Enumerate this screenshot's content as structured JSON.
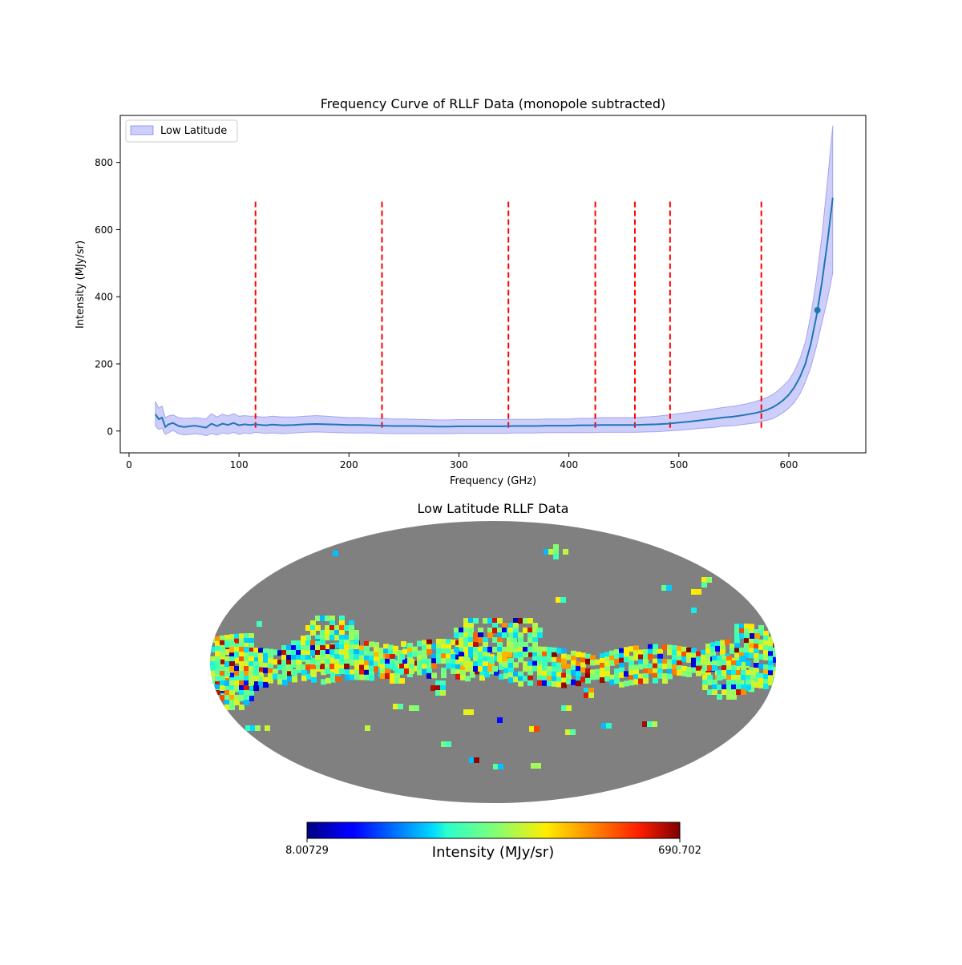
{
  "chart_data": [
    {
      "type": "line",
      "title": "Frequency Curve of RLLF Data (monopole subtracted)",
      "xlabel": "Frequency (GHz)",
      "ylabel": "Intensity (MJy/sr)",
      "xlim": [
        -8,
        670
      ],
      "ylim": [
        -65,
        940
      ],
      "xticks": [
        0,
        100,
        200,
        300,
        400,
        500,
        600
      ],
      "yticks": [
        0,
        200,
        400,
        600,
        800
      ],
      "legend": {
        "label": "Low Latitude",
        "placement": "top-left"
      },
      "series": [
        {
          "name": "Low Latitude",
          "x": [
            24,
            27,
            30,
            33,
            36,
            40,
            45,
            50,
            55,
            60,
            65,
            70,
            75,
            80,
            85,
            90,
            95,
            100,
            105,
            110,
            115,
            120,
            125,
            130,
            140,
            150,
            160,
            170,
            180,
            190,
            200,
            210,
            220,
            230,
            240,
            250,
            260,
            270,
            280,
            290,
            300,
            310,
            320,
            330,
            340,
            350,
            360,
            370,
            380,
            390,
            400,
            410,
            420,
            430,
            440,
            450,
            460,
            470,
            480,
            490,
            500,
            510,
            520,
            530,
            540,
            550,
            560,
            570,
            575,
            580,
            585,
            590,
            595,
            600,
            605,
            610,
            615,
            620,
            625,
            630,
            635,
            640
          ],
          "y": [
            50,
            35,
            40,
            12,
            20,
            24,
            15,
            12,
            14,
            16,
            13,
            10,
            22,
            15,
            22,
            18,
            24,
            17,
            20,
            18,
            20,
            18,
            17,
            19,
            17,
            18,
            20,
            21,
            20,
            19,
            18,
            18,
            17,
            16,
            15,
            15,
            15,
            14,
            13,
            13,
            14,
            14,
            14,
            14,
            14,
            15,
            15,
            15,
            16,
            16,
            16,
            17,
            17,
            18,
            18,
            18,
            18,
            19,
            20,
            22,
            25,
            28,
            32,
            36,
            40,
            43,
            48,
            54,
            58,
            63,
            70,
            80,
            92,
            108,
            130,
            160,
            200,
            260,
            340,
            440,
            560,
            695
          ],
          "upper": [
            88,
            68,
            75,
            40,
            45,
            48,
            40,
            38,
            38,
            40,
            38,
            36,
            52,
            42,
            50,
            45,
            52,
            44,
            46,
            44,
            44,
            42,
            42,
            44,
            42,
            42,
            44,
            46,
            44,
            42,
            40,
            40,
            38,
            38,
            36,
            36,
            35,
            34,
            33,
            33,
            34,
            34,
            34,
            34,
            34,
            35,
            35,
            35,
            36,
            36,
            36,
            38,
            38,
            40,
            40,
            40,
            40,
            42,
            44,
            48,
            52,
            56,
            60,
            65,
            70,
            74,
            80,
            88,
            94,
            100,
            108,
            120,
            135,
            152,
            178,
            215,
            265,
            345,
            450,
            580,
            740,
            910
          ],
          "lower": [
            15,
            5,
            8,
            -10,
            -5,
            2,
            -8,
            -12,
            -10,
            -8,
            -10,
            -14,
            -8,
            -12,
            -6,
            -9,
            -4,
            -10,
            -6,
            -8,
            -4,
            -6,
            -7,
            -6,
            -8,
            -6,
            -4,
            -3,
            -4,
            -5,
            -6,
            -6,
            -6,
            -7,
            -8,
            -8,
            -8,
            -8,
            -8,
            -8,
            -7,
            -7,
            -7,
            -7,
            -7,
            -6,
            -6,
            -6,
            -5,
            -5,
            -5,
            -5,
            -5,
            -4,
            -4,
            -4,
            -4,
            -3,
            -2,
            0,
            2,
            5,
            8,
            10,
            14,
            16,
            20,
            24,
            28,
            32,
            36,
            45,
            55,
            68,
            85,
            110,
            145,
            190,
            250,
            320,
            390,
            470
          ]
        }
      ],
      "marker": {
        "x": 626,
        "y": 360
      },
      "vlines": [
        115,
        230,
        345,
        424,
        460,
        492,
        575
      ],
      "vline_range": [
        10,
        692
      ],
      "colors": {
        "line": "#1f77b4",
        "band": "#6666ee",
        "vline": "#ff0000"
      }
    },
    {
      "type": "heatmap",
      "projection": "mollweide",
      "title": "Low Latitude RLLF Data",
      "colorbar": {
        "label": "Intensity (MJy/sr)",
        "min": "8.00729",
        "max": "690.702",
        "colormap": "jet"
      },
      "colors": {
        "masked": "#808080"
      }
    }
  ]
}
